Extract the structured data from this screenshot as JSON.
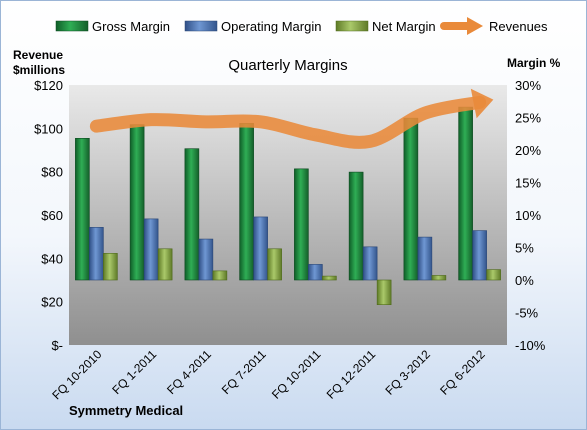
{
  "chart_data": {
    "type": "bar",
    "title": "Quarterly Margins",
    "ylabel_left_line1": "Revenue",
    "ylabel_left_line2": "$millions",
    "ylabel_right": "Margin %",
    "footer": "Symmetry Medical",
    "categories": [
      "FQ 10-2010",
      "FQ 1-2011",
      "FQ 4-2011",
      "FQ 7-2011",
      "FQ 10-2011",
      "FQ 12-2011",
      "FQ 3-2012",
      "FQ 6-2012"
    ],
    "ylim_left": [
      0,
      120
    ],
    "ylim_right": [
      -10,
      30
    ],
    "left_ticks": [
      0,
      20,
      40,
      60,
      80,
      100,
      120
    ],
    "left_tick_labels": [
      "$-",
      "$20",
      "$40",
      "$60",
      "$80",
      "$100",
      "$120"
    ],
    "right_ticks": [
      -10,
      -5,
      0,
      5,
      10,
      15,
      20,
      25,
      30
    ],
    "right_tick_labels": [
      "-10%",
      "-5%",
      "0%",
      "5%",
      "10%",
      "15%",
      "20%",
      "25%",
      "30%"
    ],
    "series": [
      {
        "name": "Gross Margin",
        "axis": "right",
        "kind": "bar",
        "color": "#1e8a3e",
        "values": [
          21.8,
          23.9,
          20.2,
          24.1,
          17.1,
          16.6,
          24.9,
          26.6
        ]
      },
      {
        "name": "Operating Margin",
        "axis": "right",
        "kind": "bar",
        "color": "#4f79b8",
        "values": [
          8.1,
          9.4,
          6.3,
          9.7,
          2.4,
          5.1,
          6.6,
          7.6
        ]
      },
      {
        "name": "Net Margin",
        "axis": "right",
        "kind": "bar",
        "color": "#8ba84a",
        "values": [
          4.1,
          4.8,
          1.4,
          4.8,
          0.6,
          -3.8,
          0.7,
          1.6
        ]
      },
      {
        "name": "Revenues",
        "axis": "left",
        "kind": "line",
        "color": "#e98a3a",
        "values": [
          101,
          104,
          103,
          103,
          97,
          94,
          107,
          112
        ]
      }
    ],
    "legend_position": "top",
    "grid": false
  }
}
